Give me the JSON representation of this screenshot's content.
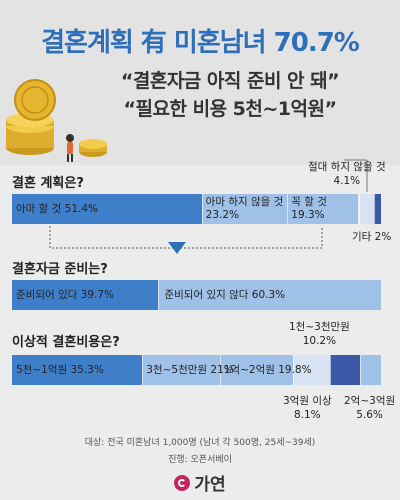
{
  "header": {
    "title": "결혼계획 有 미혼남녀 70.7%",
    "subtitle1": "“결혼자금 아직 준비 안 돼”",
    "subtitle2": "“필요한 비용 5천~1억원”"
  },
  "colors": {
    "title": "#2f6fba",
    "seg_dark": "#3f7fca",
    "seg_mid": "#6f9fd8",
    "seg_light": "#9fc1e8",
    "seg_pale": "#d7e3f2",
    "seg_navy": "#3a5aa8"
  },
  "chart_data": [
    {
      "type": "bar",
      "title": "결혼 계획은?",
      "series": [
        {
          "name": "아마 할 것",
          "value": 51.4,
          "label": "아마 할 것 51.4%"
        },
        {
          "name": "아마 하지 않을 것",
          "value": 23.2,
          "label_line1": "아마 하지 않을 것",
          "label_line2": "23.2%"
        },
        {
          "name": "꼭 할 것",
          "value": 19.3,
          "label_line1": "꼭 할 것",
          "label_line2": "19.3%"
        },
        {
          "name": "절대 하지 않을 것",
          "value": 4.1,
          "label_line1": "절대 하지 않을 것",
          "label_line2": "4.1%"
        },
        {
          "name": "기타",
          "value": 2,
          "label": "기타 2%"
        }
      ]
    },
    {
      "type": "bar",
      "title": "결혼자금 준비는?",
      "series": [
        {
          "name": "준비되어 있다",
          "value": 39.7,
          "label": "준비되어 있다 39.7%"
        },
        {
          "name": "준비되어 있지 않다",
          "value": 60.3,
          "label": "준비되어 있지 않다 60.3%"
        }
      ]
    },
    {
      "type": "bar",
      "title": "이상적 결혼비용은?",
      "series": [
        {
          "name": "5천~1억원",
          "value": 35.3,
          "label": "5천~1억원 35.3%"
        },
        {
          "name": "3천~5천만원",
          "value": 21,
          "label": "3천~5천만원 21%"
        },
        {
          "name": "1억~2억원",
          "value": 19.8,
          "label": "1억~2억원 19.8%"
        },
        {
          "name": "1천~3천만원",
          "value": 10.2,
          "label_line1": "1천~3천만원",
          "label_line2": "10.2%"
        },
        {
          "name": "3억원 이상",
          "value": 8.1,
          "label_line1": "3억원 이상",
          "label_line2": "8.1%"
        },
        {
          "name": "2억~3억원",
          "value": 5.6,
          "label_line1": "2억~3억원",
          "label_line2": "5.6%"
        }
      ]
    }
  ],
  "footer": {
    "line1": "대상: 전국 미혼남녀 1,000명 (남녀 각 500명, 25세~39세)",
    "line2": "진행: 오픈서베이",
    "brand": "가연"
  }
}
